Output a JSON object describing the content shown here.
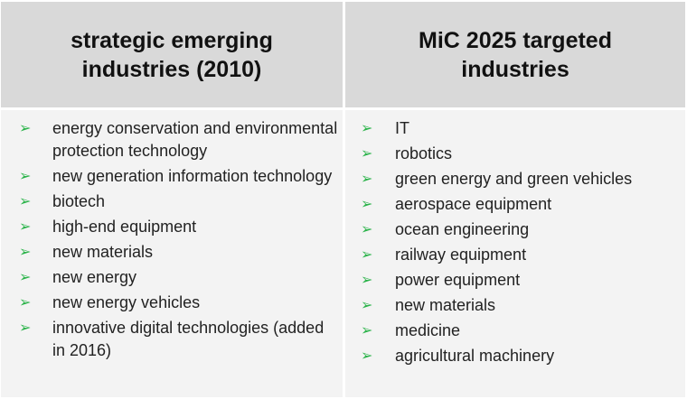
{
  "table": {
    "header": [
      "strategic emerging industries (2010)",
      "MiC 2025 targeted industries"
    ],
    "columns": [
      [
        "energy conservation and environmental protection technology",
        "new generation information technology",
        "biotech",
        "high-end equipment",
        "new materials",
        "new energy",
        "new energy vehicles",
        "innovative digital technologies (added in 2016)"
      ],
      [
        "IT",
        "robotics",
        "green energy and green vehicles",
        "aerospace equipment",
        "ocean engineering",
        "railway equipment",
        "power equipment",
        "new materials",
        "medicine",
        "agricultural machinery"
      ]
    ]
  }
}
